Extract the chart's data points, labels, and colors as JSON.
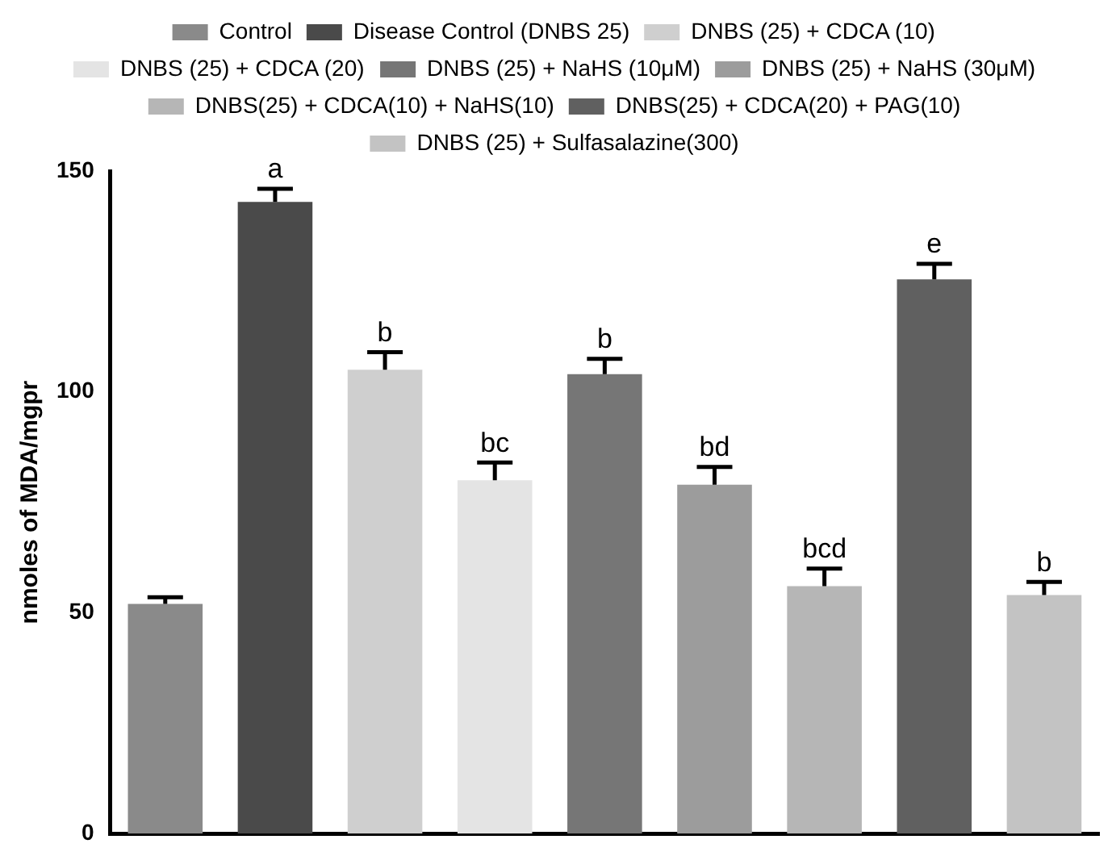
{
  "chart_data": {
    "type": "bar",
    "ylabel": "nmoles of MDA/mgpr",
    "categories": [
      null,
      null,
      null,
      null,
      null,
      null,
      null,
      null,
      null
    ],
    "series": [
      {
        "name": "Control",
        "color": "#8a8a8a",
        "values": [
          52,
          null,
          null,
          null,
          null,
          null,
          null,
          null,
          null
        ],
        "errors": [
          1.5,
          null,
          null,
          null,
          null,
          null,
          null,
          null,
          null
        ]
      },
      {
        "name": "Disease Control (DNBS 25)",
        "color": "#4a4a4a",
        "values": [
          null,
          143,
          null,
          null,
          null,
          null,
          null,
          null,
          null
        ],
        "errors": [
          null,
          3,
          null,
          null,
          null,
          null,
          null,
          null,
          null
        ],
        "value_labels": [
          null,
          "a",
          null,
          null,
          null,
          null,
          null,
          null,
          null
        ]
      },
      {
        "name": "DNBS (25) + CDCA (10)",
        "color": "#cfcfcf",
        "values": [
          null,
          null,
          105,
          null,
          null,
          null,
          null,
          null,
          null
        ],
        "errors": [
          null,
          null,
          4,
          null,
          null,
          null,
          null,
          null,
          null
        ],
        "value_labels": [
          null,
          null,
          "b",
          null,
          null,
          null,
          null,
          null,
          null
        ]
      },
      {
        "name": "DNBS (25) + CDCA (20)",
        "color": "#e4e4e4",
        "values": [
          null,
          null,
          null,
          80,
          null,
          null,
          null,
          null,
          null
        ],
        "errors": [
          null,
          null,
          null,
          4,
          null,
          null,
          null,
          null,
          null
        ],
        "value_labels": [
          null,
          null,
          null,
          "bc",
          null,
          null,
          null,
          null,
          null
        ]
      },
      {
        "name": "DNBS (25) + NaHS (10μM)",
        "color": "#767676",
        "values": [
          null,
          null,
          null,
          null,
          104,
          null,
          null,
          null,
          null
        ],
        "errors": [
          null,
          null,
          null,
          null,
          3.5,
          null,
          null,
          null,
          null
        ],
        "value_labels": [
          null,
          null,
          null,
          null,
          "b",
          null,
          null,
          null,
          null
        ]
      },
      {
        "name": "DNBS (25) + NaHS (30μM)",
        "color": "#9c9c9c",
        "values": [
          null,
          null,
          null,
          null,
          null,
          79,
          null,
          null,
          null
        ],
        "errors": [
          null,
          null,
          null,
          null,
          null,
          4,
          null,
          null,
          null
        ],
        "value_labels": [
          null,
          null,
          null,
          null,
          null,
          "bd",
          null,
          null,
          null
        ]
      },
      {
        "name": "DNBS(25) + CDCA(10) + NaHS(10)",
        "color": "#b6b6b6",
        "values": [
          null,
          null,
          null,
          null,
          null,
          null,
          56,
          null,
          null
        ],
        "errors": [
          null,
          null,
          null,
          null,
          null,
          null,
          4,
          null,
          null
        ],
        "value_labels": [
          null,
          null,
          null,
          null,
          null,
          null,
          "bcd",
          null,
          null
        ]
      },
      {
        "name": "DNBS(25) + CDCA(20) + PAG(10)",
        "color": "#606060",
        "values": [
          null,
          null,
          null,
          null,
          null,
          null,
          null,
          125.5,
          null
        ],
        "errors": [
          null,
          null,
          null,
          null,
          null,
          null,
          null,
          3.5,
          null
        ],
        "value_labels": [
          null,
          null,
          null,
          null,
          null,
          null,
          null,
          "e",
          null
        ]
      },
      {
        "name": "DNBS (25) + Sulfasalazine(300)",
        "color": "#c3c3c3",
        "values": [
          null,
          null,
          null,
          null,
          null,
          null,
          null,
          null,
          54
        ],
        "errors": [
          null,
          null,
          null,
          null,
          null,
          null,
          null,
          null,
          3
        ],
        "value_labels": [
          null,
          null,
          null,
          null,
          null,
          null,
          null,
          null,
          "b"
        ]
      }
    ],
    "ylim": [
      0,
      150
    ],
    "yticks": [
      0,
      50,
      100,
      150
    ],
    "legend": "top",
    "grid": false
  }
}
